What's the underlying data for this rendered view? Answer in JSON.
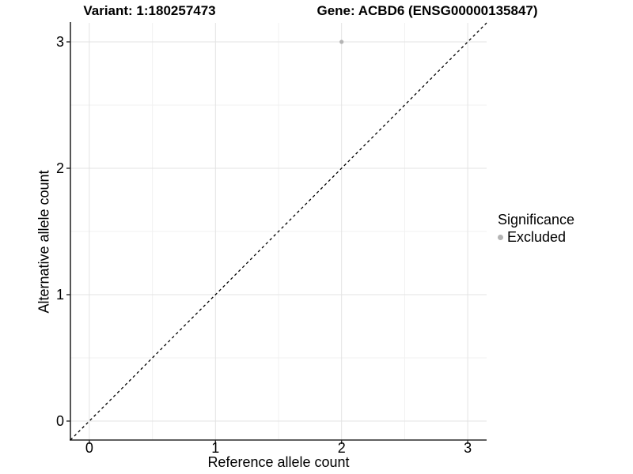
{
  "chart_data": {
    "type": "scatter",
    "title_left": "Variant: 1:180257473",
    "title_right": "Gene: ACBD6 (ENSG00000135847)",
    "xlabel": "Reference allele count",
    "ylabel": "Alternative allele count",
    "xlim": [
      -0.15,
      3.15
    ],
    "ylim": [
      -0.15,
      3.15
    ],
    "x_ticks": [
      0,
      1,
      2,
      3
    ],
    "y_ticks": [
      0,
      1,
      2,
      3
    ],
    "minor_grid_step": 0.5,
    "grid": true,
    "series": [
      {
        "name": "Excluded",
        "color": "#b4b4b4",
        "points": [
          {
            "x": 2,
            "y": 3
          }
        ]
      }
    ],
    "reference_line": {
      "type": "identity",
      "style": "dashed",
      "color": "#000000"
    },
    "legend": {
      "title": "Significance",
      "position": "right",
      "entries": [
        {
          "label": "Excluded",
          "color": "#b4b4b4"
        }
      ]
    },
    "colors": {
      "background": "#ffffff",
      "grid_major": "#e3e3e3",
      "grid_minor": "#f1f1f1",
      "axis_line": "#2b2b2b",
      "text": "#000000"
    }
  }
}
